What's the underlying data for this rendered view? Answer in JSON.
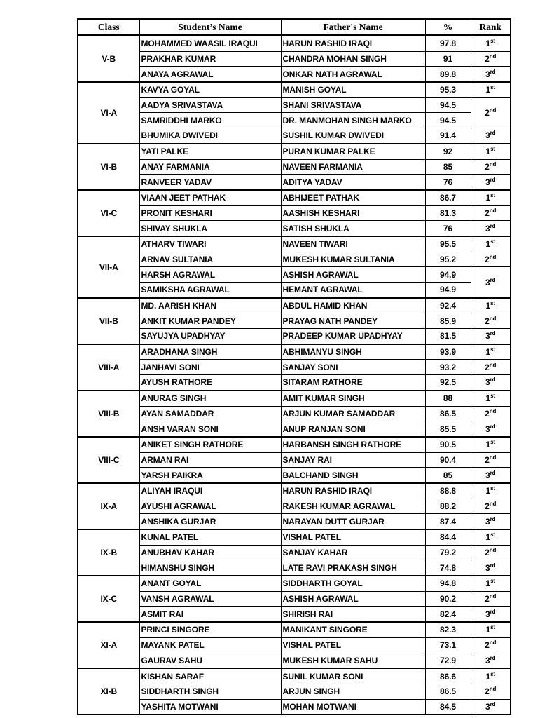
{
  "table": {
    "headers": {
      "class": "Class",
      "student": "Student’s Name",
      "father": "Father's Name",
      "pct": "%",
      "rank": "Rank"
    },
    "groups": [
      {
        "class": "V-B",
        "rows": [
          {
            "student": "MOHAMMED WAASIL IRAQUI",
            "father": "HARUN RASHID IRAQI",
            "pct": "97.8",
            "rank": "1",
            "suffix": "st"
          },
          {
            "student": "PRAKHAR KUMAR",
            "father": "CHANDRA MOHAN SINGH",
            "pct": "91",
            "rank": "2",
            "suffix": "nd"
          },
          {
            "student": "ANAYA AGRAWAL",
            "father": "ONKAR NATH AGRAWAL",
            "pct": "89.8",
            "rank": "3",
            "suffix": "rd"
          }
        ]
      },
      {
        "class": "VI-A",
        "rows": [
          {
            "student": "KAVYA GOYAL",
            "father": "MANISH GOYAL",
            "pct": "95.3",
            "rank": "1",
            "suffix": "st"
          },
          {
            "student": "AADYA SRIVASTAVA",
            "father": "SHANI SRIVASTAVA",
            "pct": "94.5",
            "rank": "2",
            "suffix": "nd",
            "rankspan": 2
          },
          {
            "student": "SAMRIDDHI MARKO",
            "father": "DR. MANMOHAN SINGH MARKO",
            "pct": "94.5",
            "rank": null
          },
          {
            "student": "BHUMIKA DWIVEDI",
            "father": "SUSHIL KUMAR DWIVEDI",
            "pct": "91.4",
            "rank": "3",
            "suffix": "rd"
          }
        ]
      },
      {
        "class": "VI-B",
        "rows": [
          {
            "student": "YATI PALKE",
            "father": "PURAN KUMAR PALKE",
            "pct": "92",
            "rank": "1",
            "suffix": "st"
          },
          {
            "student": "ANAY FARMANIA",
            "father": "NAVEEN FARMANIA",
            "pct": "85",
            "rank": "2",
            "suffix": "nd"
          },
          {
            "student": "RANVEER YADAV",
            "father": "ADITYA YADAV",
            "pct": "76",
            "rank": "3",
            "suffix": "rd"
          }
        ]
      },
      {
        "class": "VI-C",
        "rows": [
          {
            "student": "VIAAN JEET PATHAK",
            "father": "ABHIJEET PATHAK",
            "pct": "86.7",
            "rank": "1",
            "suffix": "st"
          },
          {
            "student": "PRONIT KESHARI",
            "father": "AASHISH KESHARI",
            "pct": "81.3",
            "rank": "2",
            "suffix": "nd"
          },
          {
            "student": "SHIVAY SHUKLA",
            "father": "SATISH SHUKLA",
            "pct": "76",
            "rank": "3",
            "suffix": "rd"
          }
        ]
      },
      {
        "class": "VII-A",
        "rows": [
          {
            "student": "ATHARV TIWARI",
            "father": "NAVEEN TIWARI",
            "pct": "95.5",
            "rank": "1",
            "suffix": "st"
          },
          {
            "student": "ARNAV SULTANIA",
            "father": "MUKESH KUMAR SULTANIA",
            "pct": "95.2",
            "rank": "2",
            "suffix": "nd"
          },
          {
            "student": "HARSH AGRAWAL",
            "father": "ASHISH AGRAWAL",
            "pct": "94.9",
            "rank": "3",
            "suffix": "rd",
            "rankspan": 2
          },
          {
            "student": "SAMIKSHA AGRAWAL",
            "father": "HEMANT AGRAWAL",
            "pct": "94.9",
            "rank": null
          }
        ]
      },
      {
        "class": "VII-B",
        "rows": [
          {
            "student": "MD. AARISH KHAN",
            "father": "ABDUL HAMID KHAN",
            "pct": "92.4",
            "rank": "1",
            "suffix": "st"
          },
          {
            "student": "ANKIT KUMAR PANDEY",
            "father": "PRAYAG NATH PANDEY",
            "pct": "85.9",
            "rank": "2",
            "suffix": "nd"
          },
          {
            "student": "SAYUJYA UPADHYAY",
            "father": "PRADEEP KUMAR UPADHYAY",
            "pct": "81.5",
            "rank": "3",
            "suffix": "rd"
          }
        ]
      },
      {
        "class": "VIII-A",
        "rows": [
          {
            "student": "ARADHANA SINGH",
            "father": "ABHIMANYU SINGH",
            "pct": "93.9",
            "rank": "1",
            "suffix": "st"
          },
          {
            "student": "JANHAVI SONI",
            "father": "SANJAY SONI",
            "pct": "93.2",
            "rank": "2",
            "suffix": "nd"
          },
          {
            "student": "AYUSH RATHORE",
            "father": "SITARAM RATHORE",
            "pct": "92.5",
            "rank": "3",
            "suffix": "rd"
          }
        ]
      },
      {
        "class": "VIII-B",
        "rows": [
          {
            "student": "ANURAG SINGH",
            "father": "AMIT KUMAR SINGH",
            "pct": "88",
            "rank": "1",
            "suffix": "st"
          },
          {
            "student": "AYAN SAMADDAR",
            "father": "ARJUN KUMAR SAMADDAR",
            "pct": "86.5",
            "rank": "2",
            "suffix": "nd"
          },
          {
            "student": "ANSH VARAN SONI",
            "father": "ANUP RANJAN SONI",
            "pct": "85.5",
            "rank": "3",
            "suffix": "rd"
          }
        ]
      },
      {
        "class": "VIII-C",
        "rows": [
          {
            "student": "ANIKET SINGH RATHORE",
            "father": "HARBANSH SINGH RATHORE",
            "pct": "90.5",
            "rank": "1",
            "suffix": "st"
          },
          {
            "student": "ARMAN RAI",
            "father": "SANJAY RAI",
            "pct": "90.4",
            "rank": "2",
            "suffix": "nd"
          },
          {
            "student": "YARSH PAIKRA",
            "father": "BALCHAND SINGH",
            "pct": "85",
            "rank": "3",
            "suffix": "rd"
          }
        ]
      },
      {
        "class": "IX-A",
        "rows": [
          {
            "student": "ALIYAH IRAQUI",
            "father": "HARUN RASHID IRAQI",
            "pct": "88.8",
            "rank": "1",
            "suffix": "st"
          },
          {
            "student": "AYUSHI AGRAWAL",
            "father": "RAKESH KUMAR AGRAWAL",
            "pct": "88.2",
            "rank": "2",
            "suffix": "nd"
          },
          {
            "student": "ANSHIKA GURJAR",
            "father": "NARAYAN DUTT GURJAR",
            "pct": "87.4",
            "rank": "3",
            "suffix": "rd"
          }
        ]
      },
      {
        "class": "IX-B",
        "rows": [
          {
            "student": "KUNAL PATEL",
            "father": "VISHAL PATEL",
            "pct": "84.4",
            "rank": "1",
            "suffix": "st"
          },
          {
            "student": "ANUBHAV KAHAR",
            "father": "SANJAY KAHAR",
            "pct": "79.2",
            "rank": "2",
            "suffix": "nd"
          },
          {
            "student": "HIMANSHU SINGH",
            "father": "LATE RAVI PRAKASH SINGH",
            "pct": "74.8",
            "rank": "3",
            "suffix": "rd"
          }
        ]
      },
      {
        "class": "IX-C",
        "rows": [
          {
            "student": "ANANT GOYAL",
            "father": "SIDDHARTH GOYAL",
            "pct": "94.8",
            "rank": "1",
            "suffix": "st"
          },
          {
            "student": "VANSH AGRAWAL",
            "father": "ASHISH AGRAWAL",
            "pct": "90.2",
            "rank": "2",
            "suffix": "nd"
          },
          {
            "student": "ASMIT RAI",
            "father": "SHIRISH RAI",
            "pct": "82.4",
            "rank": "3",
            "suffix": "rd"
          }
        ]
      },
      {
        "class": "XI-A",
        "rows": [
          {
            "student": "PRINCI SINGORE",
            "father": "MANIKANT SINGORE",
            "pct": "82.3",
            "rank": "1",
            "suffix": "st"
          },
          {
            "student": "MAYANK PATEL",
            "father": "VISHAL PATEL",
            "pct": "73.1",
            "rank": "2",
            "suffix": "nd"
          },
          {
            "student": "GAURAV SAHU",
            "father": "MUKESH KUMAR SAHU",
            "pct": "72.9",
            "rank": "3",
            "suffix": "rd"
          }
        ]
      },
      {
        "class": "XI-B",
        "rows": [
          {
            "student": "KISHAN SARAF",
            "father": "SUNIL KUMAR SONI",
            "pct": "86.6",
            "rank": "1",
            "suffix": "st"
          },
          {
            "student": "SIDDHARTH SINGH",
            "father": "ARJUN SINGH",
            "pct": "86.5",
            "rank": "2",
            "suffix": "nd"
          },
          {
            "student": "YASHITA MOTWANI",
            "father": "MOHAN MOTWANI",
            "pct": "84.5",
            "rank": "3",
            "suffix": "rd"
          }
        ]
      }
    ]
  }
}
